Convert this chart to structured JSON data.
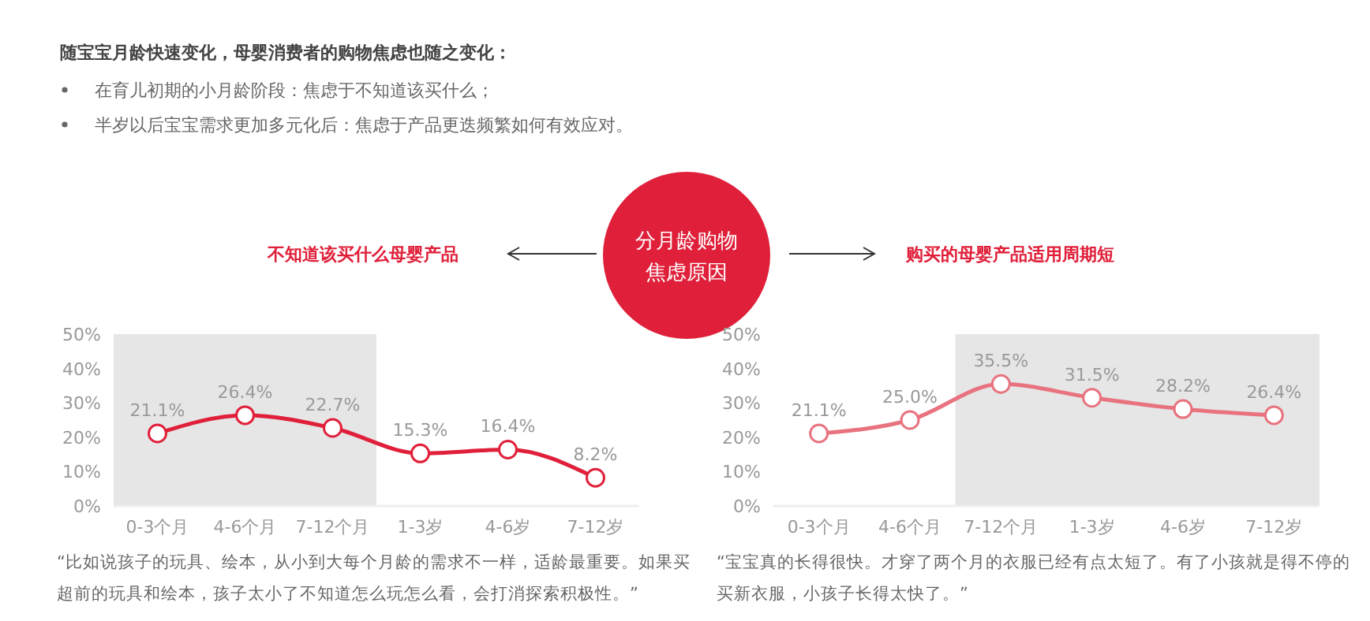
{
  "chart_data": [
    {
      "type": "other",
      "title": "随宝宝月龄快速变化，母婴消费者的购物焦虑也随之变化：",
      "annotations": [
        "在育儿初期的小月龄阶段：焦虑于不知道该买什么；",
        "半岁以后宝宝需求更加多元化后：焦虑于产品更迭频繁如何有效应对。",
        "分月龄购物焦虑原因"
      ]
    },
    {
      "type": "line",
      "title": "不知道该买什么母婴产品",
      "categories": [
        "0-3个月",
        "4-6个月",
        "7-12个月",
        "1-3岁",
        "4-6岁",
        "7-12岁"
      ],
      "series": [
        {
          "color": "#e0203a",
          "values": [
            21.1,
            26.4,
            22.7,
            15.3,
            16.4,
            8.2
          ],
          "value_labels": [
            "21.1%",
            "26.4%",
            "22.7%",
            "15.3%",
            "16.4%",
            "8.2%"
          ]
        }
      ],
      "ylim": [
        0,
        50
      ],
      "yticks": [
        {
          "value": 0,
          "label": "0%"
        },
        {
          "value": 10,
          "label": "10%"
        },
        {
          "value": 20,
          "label": "20%"
        },
        {
          "value": 30,
          "label": "30%"
        },
        {
          "value": 40,
          "label": "40%"
        },
        {
          "value": 50,
          "label": "50%"
        }
      ],
      "bands": [
        {
          "axis": "x",
          "from": "0-3个月",
          "to": "7-12个月",
          "color": "#e6e6e6"
        }
      ],
      "marker": "circle",
      "grid": false,
      "annotations": [
        "“比如说孩子的玩具、绘本，从小到大每个月龄的需求不一样，适龄最重要。如果买超前的玩具和绘本，孩子太小了不知道怎么玩怎么看，会打消探索积极性。”"
      ]
    },
    {
      "type": "line",
      "title": "购买的母婴产品适用周期短",
      "categories": [
        "0-3个月",
        "4-6个月",
        "7-12个月",
        "1-3岁",
        "4-6岁",
        "7-12岁"
      ],
      "series": [
        {
          "color": "#e8737f",
          "values": [
            21.1,
            25.0,
            35.5,
            31.5,
            28.2,
            26.4
          ],
          "value_labels": [
            "21.1%",
            "25.0%",
            "35.5%",
            "31.5%",
            "28.2%",
            "26.4%"
          ]
        }
      ],
      "ylim": [
        0,
        50
      ],
      "yticks": [
        {
          "value": 0,
          "label": "0%"
        },
        {
          "value": 10,
          "label": "10%"
        },
        {
          "value": 20,
          "label": "20%"
        },
        {
          "value": 30,
          "label": "30%"
        },
        {
          "value": 40,
          "label": "40%"
        },
        {
          "value": 50,
          "label": "50%"
        }
      ],
      "bands": [
        {
          "axis": "x",
          "from": "7-12个月",
          "to": "7-12岁",
          "color": "#e6e6e6"
        }
      ],
      "marker": "circle",
      "grid": false,
      "annotations": [
        "“宝宝真的长得很快。才穿了两个月的衣服已经有点太短了。有了小孩就是得不停的买新衣服，小孩子长得太快了。”"
      ]
    }
  ]
}
